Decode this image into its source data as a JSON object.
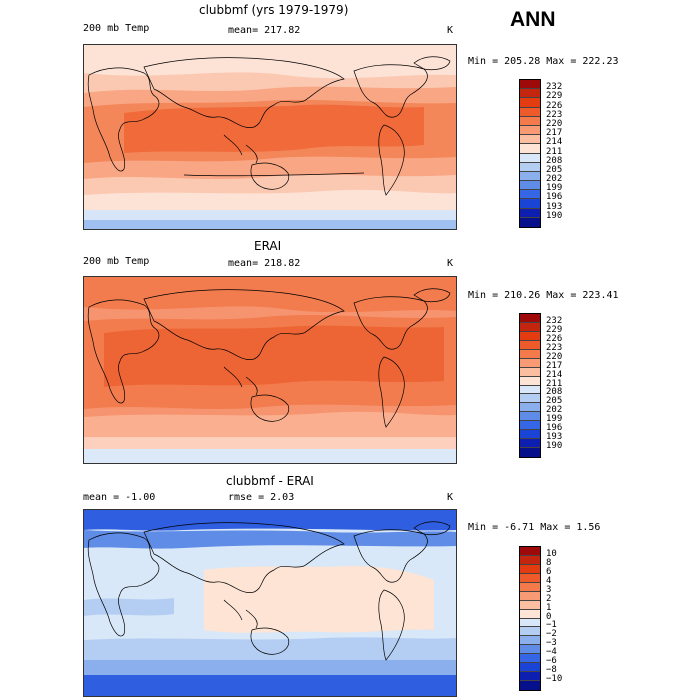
{
  "season": "ANN",
  "panels": [
    {
      "title": "clubbmf (yrs 1979-1979)",
      "left_text": "200 mb Temp",
      "center_text": "mean= 217.82",
      "right_text": "K",
      "minmax": "Min = 205.28 Max = 222.23",
      "levels": [
        "232",
        "229",
        "226",
        "223",
        "220",
        "217",
        "214",
        "211",
        "208",
        "205",
        "202",
        "199",
        "196",
        "193",
        "190"
      ],
      "colors": [
        "#9e0a0a",
        "#c4250e",
        "#e33c10",
        "#ef5a2a",
        "#f47a4c",
        "#f89b74",
        "#fbbea0",
        "#fde4d4",
        "#d9e8f8",
        "#b4cdf2",
        "#8aafec",
        "#5f8ce6",
        "#3466e6",
        "#1a44d6",
        "#0c1fb0",
        "#05108a"
      ],
      "map_palette": {
        "band_hot": "#f06a3a",
        "band_warm": "#f4875a",
        "band_mid": "#f8a684",
        "band_light": "#fbc9b2",
        "band_pale": "#fde2d6",
        "band_cool": "#d6e6f8",
        "band_cold": "#9fc0f0"
      }
    },
    {
      "title": "ERAI",
      "left_text": "200 mb Temp",
      "center_text": "mean= 218.82",
      "right_text": "K",
      "minmax": "Min = 210.26 Max = 223.41",
      "levels": [
        "232",
        "229",
        "226",
        "223",
        "220",
        "217",
        "214",
        "211",
        "208",
        "205",
        "202",
        "199",
        "196",
        "193",
        "190"
      ],
      "colors": [
        "#9e0a0a",
        "#c4250e",
        "#e33c10",
        "#ef5a2a",
        "#f47a4c",
        "#f89b74",
        "#fbbea0",
        "#fde4d4",
        "#d9e8f8",
        "#b4cdf2",
        "#8aafec",
        "#5f8ce6",
        "#3466e6",
        "#1a44d6",
        "#0c1fb0",
        "#05108a"
      ],
      "map_palette": {
        "band_hot": "#ee6535",
        "band_warm": "#f27c4e",
        "band_mid": "#f69470",
        "band_light": "#fab090",
        "band_pale": "#fcd0bc",
        "band_cool": "#dce9f8",
        "band_cold": "#c4d9f4"
      }
    },
    {
      "title": "clubbmf - ERAI",
      "left_text": "mean =   -1.00",
      "center_text": "rmse =   2.03",
      "right_text": "K",
      "minmax": "Min =  -6.71 Max =   1.56",
      "levels": [
        "10",
        "8",
        "6",
        "4",
        "3",
        "2",
        "1",
        "0",
        "−1",
        "−2",
        "−3",
        "−4",
        "−6",
        "−8",
        "−10"
      ],
      "colors": [
        "#9e0a0a",
        "#c4250e",
        "#e33c10",
        "#ef5a2a",
        "#f47a4c",
        "#f89b74",
        "#fbbea0",
        "#fde4d4",
        "#d9e8f8",
        "#b4cdf2",
        "#8aafec",
        "#5f8ce6",
        "#3466e6",
        "#1a44d6",
        "#0c1fb0",
        "#05108a"
      ],
      "map_palette": {
        "band_hot": "#fde4d4",
        "band_warm": "#fbe0d0",
        "band_mid": "#d9e8f8",
        "band_light": "#b4cdf2",
        "band_pale": "#8aafec",
        "band_cool": "#5f8ce6",
        "band_cold": "#2f5fe0"
      }
    }
  ]
}
